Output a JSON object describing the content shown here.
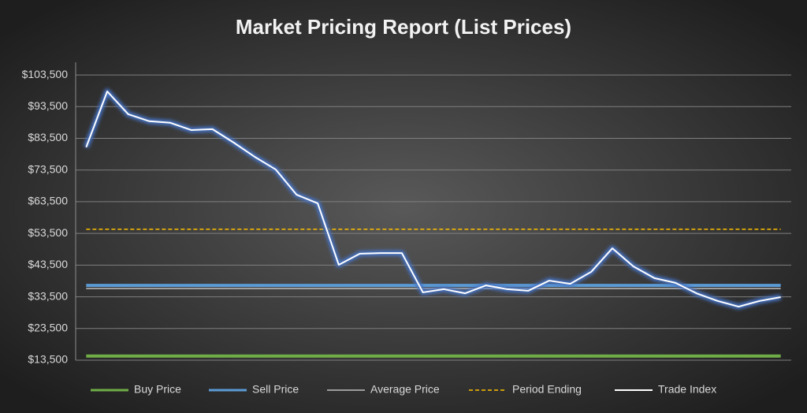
{
  "chart_data": {
    "type": "line",
    "title": "Market Pricing Report (List Prices)",
    "ylim": [
      13500,
      107500
    ],
    "yticks": [
      {
        "value": 13500,
        "label": "$13,500"
      },
      {
        "value": 23500,
        "label": "$23,500"
      },
      {
        "value": 33500,
        "label": "$33,500"
      },
      {
        "value": 43500,
        "label": "$43,500"
      },
      {
        "value": 53500,
        "label": "$53,500"
      },
      {
        "value": 63500,
        "label": "$63,500"
      },
      {
        "value": 73500,
        "label": "$73,500"
      },
      {
        "value": 83500,
        "label": "$83,500"
      },
      {
        "value": 93500,
        "label": "$93,500"
      },
      {
        "value": 103500,
        "label": "$103,500"
      }
    ],
    "grid": true,
    "legend": "bottom",
    "series": [
      {
        "name": "Buy Price",
        "color": "#70ad47",
        "width": 4,
        "dash": false,
        "glow": false,
        "values": [
          14800,
          14800,
          14800,
          14800,
          14800,
          14800,
          14800,
          14800,
          14800,
          14800,
          14800,
          14800,
          14800,
          14800,
          14800,
          14800,
          14800,
          14800,
          14800,
          14800,
          14800,
          14800,
          14800,
          14800,
          14800,
          14800,
          14800,
          14800,
          14800,
          14800,
          14800,
          14800,
          14800,
          14800
        ]
      },
      {
        "name": "Sell Price",
        "color": "#5b9bd5",
        "width": 4,
        "dash": false,
        "glow": false,
        "values": [
          37100,
          37100,
          37100,
          37100,
          37100,
          37100,
          37100,
          37100,
          37100,
          37100,
          37100,
          37100,
          37100,
          37100,
          37100,
          37100,
          37100,
          37100,
          37100,
          37100,
          37100,
          37100,
          37100,
          37100,
          37100,
          37100,
          37100,
          37100,
          37100,
          37100,
          37100,
          37100,
          37100,
          37100
        ]
      },
      {
        "name": "Average Price",
        "color": "#bfbfbf",
        "width": 1.5,
        "dash": false,
        "glow": false,
        "values": [
          36100,
          36100,
          36100,
          36100,
          36100,
          36100,
          36100,
          36100,
          36100,
          36100,
          36100,
          36100,
          36100,
          36100,
          36100,
          36100,
          36100,
          36100,
          36100,
          36100,
          36100,
          36100,
          36100,
          36100,
          36100,
          36100,
          36100,
          36100,
          36100,
          36100,
          36100,
          36100,
          36100,
          36100
        ]
      },
      {
        "name": "Period Ending",
        "color": "#ffc000",
        "width": 1.5,
        "dash": true,
        "glow": false,
        "values": [
          54800,
          54800,
          54800,
          54800,
          54800,
          54800,
          54800,
          54800,
          54800,
          54800,
          54800,
          54800,
          54800,
          54800,
          54800,
          54800,
          54800,
          54800,
          54800,
          54800,
          54800,
          54800,
          54800,
          54800,
          54800,
          54800,
          54800,
          54800,
          54800,
          54800,
          54800,
          54800,
          54800,
          54800
        ]
      },
      {
        "name": "Trade Index",
        "color": "#ffffff",
        "width": 2,
        "dash": false,
        "glow": true,
        "values": [
          80700,
          98300,
          91100,
          88900,
          88400,
          86100,
          86400,
          82200,
          77700,
          73700,
          65700,
          63000,
          43600,
          47100,
          47300,
          47300,
          34900,
          35900,
          34600,
          37100,
          35900,
          35400,
          38600,
          37600,
          41400,
          48800,
          43100,
          39400,
          37900,
          34600,
          32200,
          30400,
          32200,
          33400
        ]
      }
    ]
  }
}
